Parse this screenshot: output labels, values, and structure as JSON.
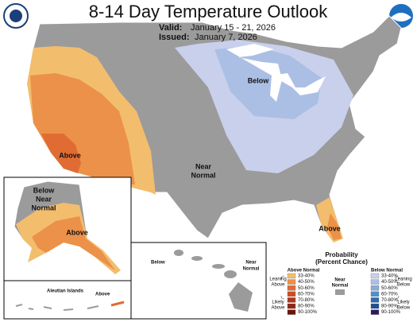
{
  "header": {
    "title": "8-14 Day Temperature Outlook",
    "valid_label": "Valid:",
    "valid": "January 15 - 21, 2026",
    "issued_label": "Issued:",
    "issued": "January 7, 2026"
  },
  "conus_labels": {
    "southwest": "Above",
    "great_lakes": "Below",
    "central": [
      "Near",
      "Normal"
    ],
    "florida": "Above"
  },
  "alaska_labels": {
    "north": [
      "Below",
      "Near",
      "Normal"
    ],
    "south": "Above"
  },
  "aleutian": {
    "title": "Aleutian Islands",
    "label": "Above"
  },
  "hawaii_labels": {
    "west": "Below",
    "east": [
      "Near",
      "Normal"
    ]
  },
  "legend": {
    "title": "Probability",
    "subtitle": "(Percent Chance)",
    "ranges": [
      "33-40%",
      "40-50%",
      "50-60%",
      "60-70%",
      "70-80%",
      "80-90%",
      "90-100%"
    ],
    "above": {
      "name": "Above Normal",
      "leaning": [
        "Leaning",
        "Above"
      ],
      "likely": [
        "Likely",
        "Above"
      ],
      "colors": [
        "#f3bd6e",
        "#ec9149",
        "#e06c33",
        "#cd4d23",
        "#b23618",
        "#922513",
        "#6b1409"
      ]
    },
    "near": {
      "name": [
        "Near",
        "Normal"
      ],
      "color": "#9b9b9b"
    },
    "below": {
      "name": "Below Normal",
      "leaning": [
        "Leaning",
        "Below"
      ],
      "likely": [
        "Likely",
        "Below"
      ],
      "colors": [
        "#c9d0ec",
        "#abbfe4",
        "#86acd9",
        "#4f8fca",
        "#2e6bb2",
        "#1f4e93",
        "#2b1b5d"
      ]
    }
  }
}
